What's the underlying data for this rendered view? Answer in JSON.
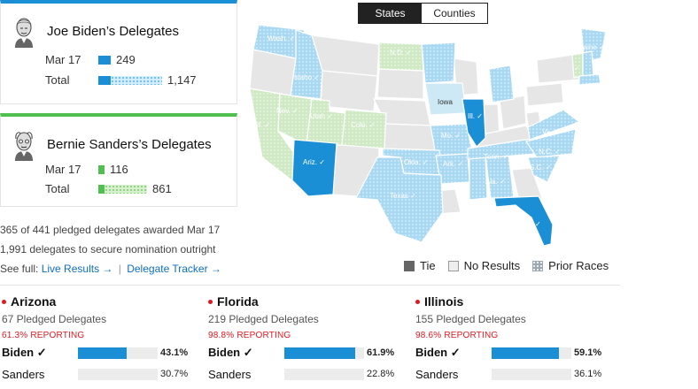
{
  "biden_card": {
    "name": "Joe Biden’s Delegates",
    "rows": [
      {
        "label": "Mar 17",
        "value": "249"
      },
      {
        "label": "Total",
        "value": "1,147"
      }
    ],
    "color": "#1a8fd6"
  },
  "sanders_card": {
    "name": "Bernie Sanders’s Delegates",
    "rows": [
      {
        "label": "Mar 17",
        "value": "116"
      },
      {
        "label": "Total",
        "value": "861"
      }
    ],
    "color": "#4fbf4f"
  },
  "notes": {
    "line1": "365 of 441 pledged delegates awarded Mar 17",
    "line2": "1,991 delegates to secure nomination outright",
    "see_full": "See full:",
    "live_results": "Live Results →",
    "separator": "|",
    "delegate_tracker": "Delegate Tracker →"
  },
  "toggle": {
    "states": "States",
    "counties": "Counties",
    "selected": "States"
  },
  "map": {
    "labels": {
      "wash": "Wash. ✓",
      "idaho": "Idaho ✓",
      "nd": "N.D. ✓",
      "maine": "Maine ✓",
      "vt": "✓",
      "nev": "Nev. ✓",
      "utah": "Utah ✓",
      "calif": "Calif. ✓",
      "colo": "Colo. ✓",
      "iowa": "Iowa",
      "ill": "Ill. ✓",
      "mo": "Mo. ✓",
      "va": "Va. ✓",
      "nc": "N.C. ✓",
      "sc": "S.C. ✓",
      "tenn": "Tenn. ✓",
      "ariz": "Ariz. ✓",
      "okla": "Okla. ✓",
      "ark": "Ark. ✓",
      "ala": "Ala. ✓",
      "texas": "Texas ✓",
      "fla": "✓"
    }
  },
  "legend": {
    "tie": "Tie",
    "no_results": "No Results",
    "prior_races": "Prior Races"
  },
  "races": [
    {
      "state": "Arizona",
      "delegates": "67 Pledged Delegates",
      "reporting": "61.3% REPORTING",
      "winner": {
        "name": "Biden ✓",
        "pct_label": "43.1%",
        "pct": 43.1
      },
      "loser": {
        "name": "Sanders",
        "pct_label": "30.7%",
        "pct": 30.7
      }
    },
    {
      "state": "Florida",
      "delegates": "219 Pledged Delegates",
      "reporting": "98.8% REPORTING",
      "winner": {
        "name": "Biden ✓",
        "pct_label": "61.9%",
        "pct": 61.9
      },
      "loser": {
        "name": "Sanders",
        "pct_label": "22.8%",
        "pct": 22.8
      }
    },
    {
      "state": "Illinois",
      "delegates": "155 Pledged Delegates",
      "reporting": "98.6% REPORTING",
      "winner": {
        "name": "Biden ✓",
        "pct_label": "59.1%",
        "pct": 59.1
      },
      "loser": {
        "name": "Sanders",
        "pct_label": "36.1%",
        "pct": 36.1
      }
    }
  ],
  "colors": {
    "biden": "#1a8fd6",
    "biden_prior": "#a9d8f2",
    "sanders": "#4fbf4f",
    "sanders_prior": "#cfe9c4",
    "no_results": "#e6e6e6",
    "reporting_red": "#e0181f"
  }
}
